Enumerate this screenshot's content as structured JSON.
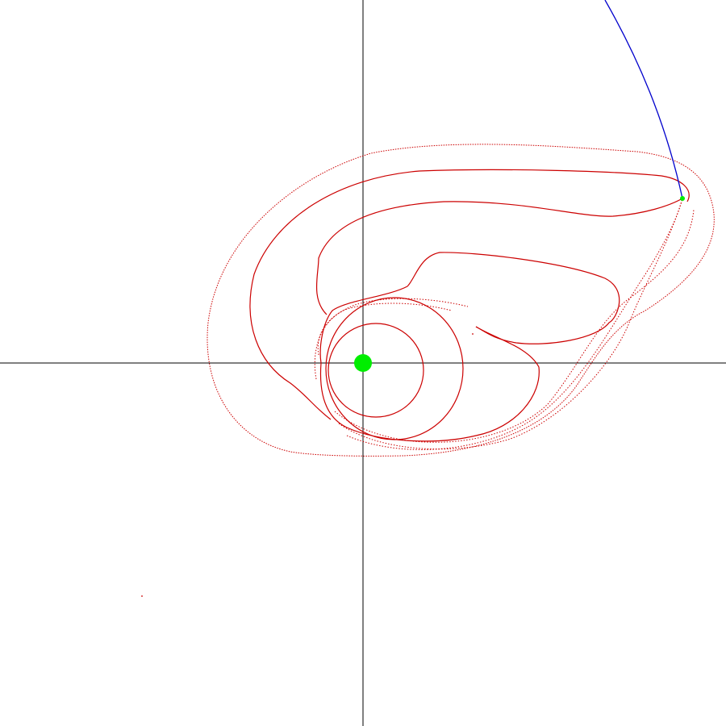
{
  "scene": {
    "type": "orbit-trajectory-plot",
    "background_color": "#ffffff",
    "axis_color": "#000000",
    "trajectory_color": "#cc0000",
    "second_trajectory_color": "#0000cc",
    "central_body_color": "#00ee00",
    "marker_color": "#00ee00"
  }
}
